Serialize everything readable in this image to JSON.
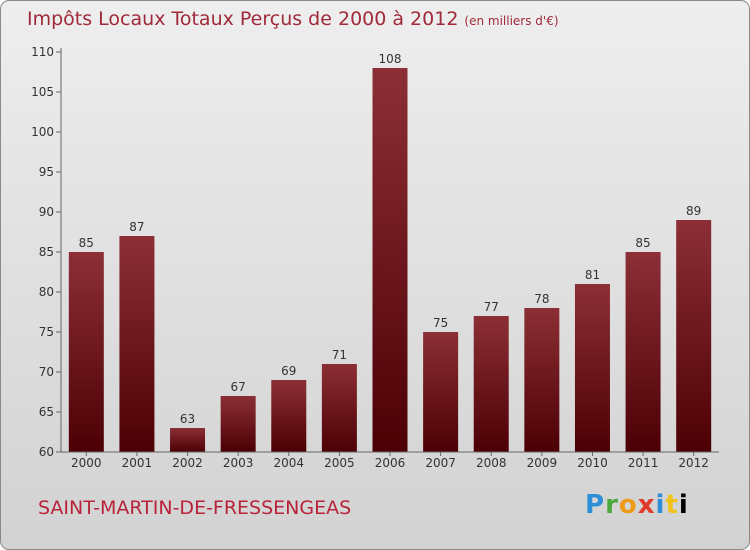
{
  "title": "Impôts Locaux Totaux Perçus de 2000 à 2012",
  "unit_note": "(en milliers d'€)",
  "commune": "SAINT-MARTIN-DE-FRESSENGEAS",
  "brand": "Proxiti",
  "colors": {
    "bar_top": "#8c2f36",
    "bar_bottom": "#4c0004",
    "title": "#a02a3a",
    "commune": "#b8233a"
  },
  "chart_data": {
    "type": "bar",
    "title": "Impôts Locaux Totaux Perçus de 2000 à 2012",
    "ylabel": "en milliers d'€",
    "xlabel": "",
    "categories": [
      "2000",
      "2001",
      "2002",
      "2003",
      "2004",
      "2005",
      "2006",
      "2007",
      "2008",
      "2009",
      "2010",
      "2011",
      "2012"
    ],
    "values": [
      85,
      87,
      63,
      67,
      69,
      71,
      108,
      75,
      77,
      78,
      81,
      85,
      89
    ],
    "ylim": [
      60,
      110
    ],
    "yticks": [
      60,
      65,
      70,
      75,
      80,
      85,
      90,
      95,
      100,
      105,
      110
    ],
    "grid": false,
    "data_labels": true
  }
}
